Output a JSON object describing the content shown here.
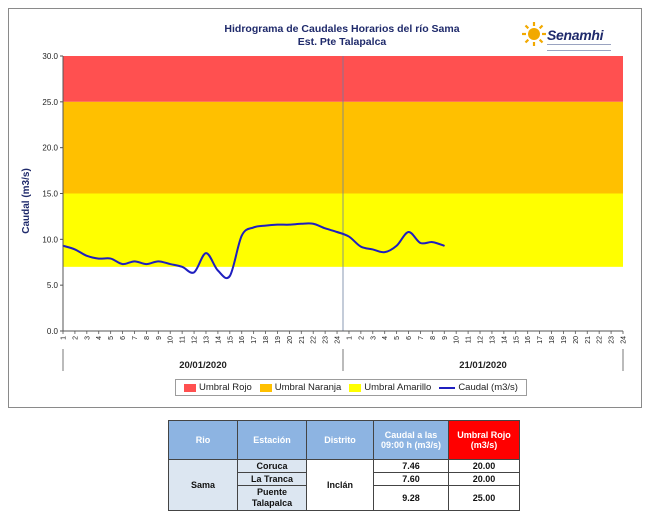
{
  "chart_data": {
    "type": "line",
    "title": "Hidrograma de Caudales Horarios del río Sama",
    "subtitle": "Est. Pte Talapalca",
    "ylabel": "Caudal (m3/s)",
    "ylim": [
      0,
      30
    ],
    "yticks": [
      "0.0",
      "5.0",
      "10.0",
      "15.0",
      "20.0",
      "25.0",
      "30.0"
    ],
    "x_tick_labels": [
      "1",
      "2",
      "3",
      "4",
      "5",
      "6",
      "7",
      "8",
      "9",
      "10",
      "11",
      "12",
      "13",
      "14",
      "15",
      "16",
      "17",
      "18",
      "19",
      "20",
      "21",
      "22",
      "23",
      "24",
      "1",
      "2",
      "3",
      "4",
      "5",
      "6",
      "7",
      "8",
      "9",
      "10",
      "11",
      "12",
      "13",
      "14",
      "15",
      "16",
      "17",
      "18",
      "19",
      "20",
      "21",
      "22",
      "23",
      "24"
    ],
    "day_labels": [
      "20/01/2020",
      "21/01/2020"
    ],
    "bands": [
      {
        "name": "Umbral Rojo",
        "from": 25,
        "to": 30,
        "color": "#ff5050"
      },
      {
        "name": "Umbral Naranja",
        "from": 15,
        "to": 25,
        "color": "#ffc000"
      },
      {
        "name": "Umbral Amarillo",
        "from": 7,
        "to": 15,
        "color": "#ffff00"
      }
    ],
    "series": [
      {
        "name": "Caudal (m3/s)",
        "color": "#1f1fbf",
        "values": [
          9.3,
          8.9,
          8.2,
          7.9,
          7.9,
          7.3,
          7.6,
          7.3,
          7.6,
          7.3,
          7.0,
          6.4,
          8.5,
          6.6,
          6.0,
          10.4,
          11.3,
          11.5,
          11.6,
          11.6,
          11.7,
          11.7,
          11.2,
          10.8,
          10.3,
          9.2,
          8.9,
          8.6,
          9.3,
          10.8,
          9.6,
          9.7,
          9.3
        ]
      }
    ],
    "legend_position": "bottom",
    "grid": false
  },
  "logo_text": "Senamhi",
  "legend": [
    {
      "label": "Umbral Rojo",
      "color": "#ff5050",
      "kind": "swatch"
    },
    {
      "label": "Umbral Naranja",
      "color": "#ffc000",
      "kind": "swatch"
    },
    {
      "label": "Umbral Amarillo",
      "color": "#ffff00",
      "kind": "swatch"
    },
    {
      "label": "Caudal (m3/s)",
      "color": "#1f1fbf",
      "kind": "line"
    }
  ],
  "table": {
    "headers": {
      "rio": "Rio",
      "estacion": "Estación",
      "distrito": "Distrito",
      "caudal": "Caudal a las 09:00 h (m3/s)",
      "umbral": "Umbral Rojo (m3/s)"
    },
    "rio": "Sama",
    "distrito": "Inclán",
    "rows": [
      {
        "estacion": "Coruca",
        "caudal": "7.46",
        "umbral": "20.00"
      },
      {
        "estacion": "La Tranca",
        "caudal": "7.60",
        "umbral": "20.00"
      },
      {
        "estacion": "Puente Talapalca",
        "caudal": "9.28",
        "umbral": "25.00"
      }
    ]
  }
}
